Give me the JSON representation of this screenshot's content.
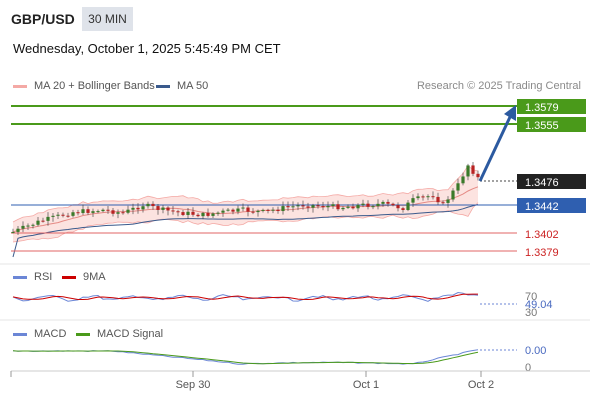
{
  "header": {
    "pair": "GBP/USD",
    "timeframe": "30 MIN",
    "datetime": "Wednesday, October 1, 2025 5:45:49 PM CET"
  },
  "legend": {
    "bb_label": "MA 20 + Bollinger Bands",
    "ma50_label": "MA 50",
    "watermark": "Research © 2025 Trading Central"
  },
  "levels": {
    "r2": "1.3579",
    "r1": "1.3555",
    "current": "1.3476",
    "pivot": "1.3442",
    "s1": "1.3402",
    "s2": "1.3379"
  },
  "rsi": {
    "label": "RSI",
    "ma_label": "9MA",
    "level_70": "70",
    "value": "49.04",
    "level_30": "30"
  },
  "macd": {
    "label": "MACD",
    "signal_label": "MACD Signal",
    "value": "0.00",
    "zero": "0"
  },
  "xaxis": {
    "labels": [
      "Sep 30",
      "Oct 1",
      "Oct 2"
    ]
  },
  "colors": {
    "bb": "#f4a9a5",
    "ma50": "#3a5a8c",
    "resistance": "#4a9a1a",
    "pivot": "#2f5fb0",
    "support": "#e06666",
    "arrow": "#2c5aa0",
    "rsi": "#6b86d6",
    "rsi_ma": "#cc0000",
    "macd": "#6b86d6",
    "macd_signal": "#4a9a1a"
  }
}
